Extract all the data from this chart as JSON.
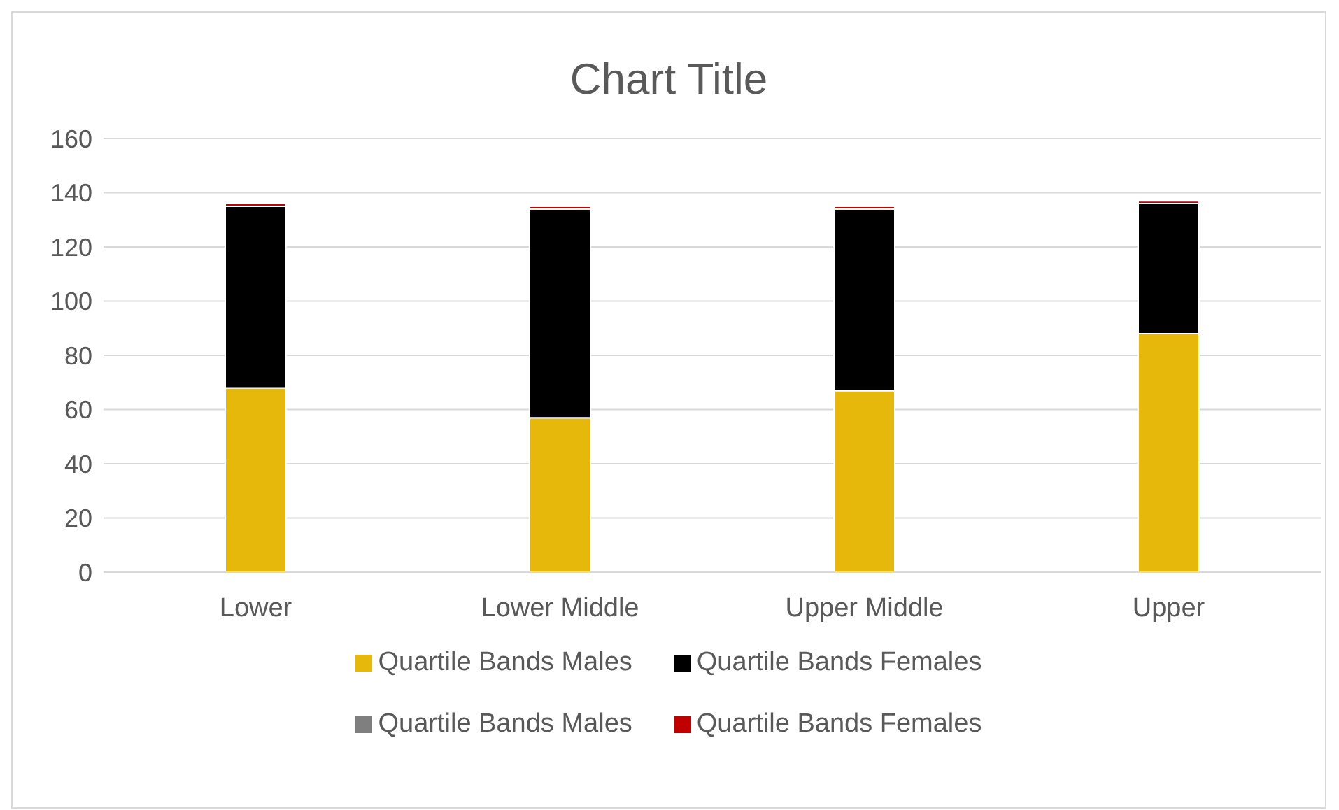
{
  "chart_data": {
    "type": "bar",
    "title": "Chart Title",
    "categories": [
      "Lower",
      "Lower Middle",
      "Upper Middle",
      "Upper"
    ],
    "stacked": true,
    "series": [
      {
        "name": "Quartile Bands Males",
        "color": "#e6b80b",
        "values": [
          68,
          57,
          67,
          88
        ]
      },
      {
        "name": "Quartile Bands Females",
        "color": "#000000",
        "values": [
          67,
          77,
          67,
          48
        ]
      },
      {
        "name": "Quartile Bands Males",
        "color": "#7f7f7f",
        "values": [
          null,
          null,
          null,
          null
        ]
      },
      {
        "name": "Quartile Bands Females",
        "color": "#c00000",
        "values": [
          1,
          1,
          1,
          1
        ]
      }
    ],
    "ylim": [
      0,
      160
    ],
    "yticks": [
      0,
      20,
      40,
      60,
      80,
      100,
      120,
      140,
      160
    ],
    "grid": "y",
    "legend": "bottom"
  }
}
